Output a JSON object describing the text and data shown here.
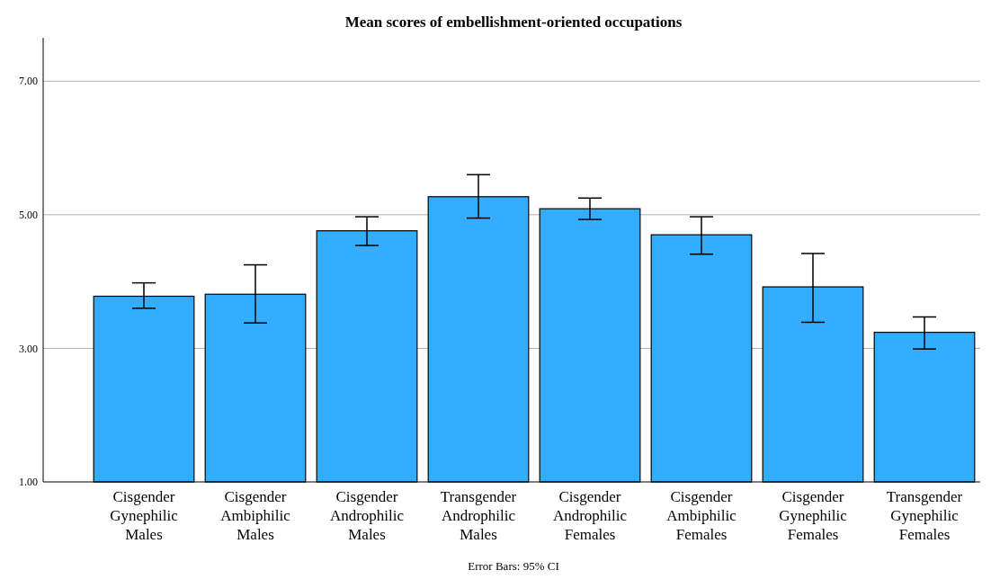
{
  "chart_data": {
    "type": "bar",
    "title": "Mean scores of embellishment-oriented occupations",
    "categories": [
      "Cisgender Gynephilic Males",
      "Cisgender Ambiphilic Males",
      "Cisgender Androphilic Males",
      "Transgender Androphilic Males",
      "Cisgender Androphilic Females",
      "Cisgender Ambiphilic Females",
      "Cisgender Gynephilic Females",
      "Transgender Gynephilic Females"
    ],
    "values": [
      3.78,
      3.81,
      4.76,
      5.27,
      5.09,
      4.7,
      3.92,
      3.24
    ],
    "errors": [
      [
        3.6,
        3.98
      ],
      [
        3.38,
        4.25
      ],
      [
        4.54,
        4.97
      ],
      [
        4.95,
        5.6
      ],
      [
        4.93,
        5.25
      ],
      [
        4.41,
        4.97
      ],
      [
        3.39,
        4.42
      ],
      [
        2.99,
        3.47
      ]
    ],
    "color": "#33adff",
    "ylim": [
      1,
      7.65
    ],
    "yticks": [
      {
        "value": 1,
        "label": "1.00"
      },
      {
        "value": 3,
        "label": "3.00"
      },
      {
        "value": 5,
        "label": "5.00"
      },
      {
        "value": 7,
        "label": "7.00"
      }
    ],
    "grid": "y",
    "annotations": [
      "Error Bars: 95% CI"
    ]
  }
}
